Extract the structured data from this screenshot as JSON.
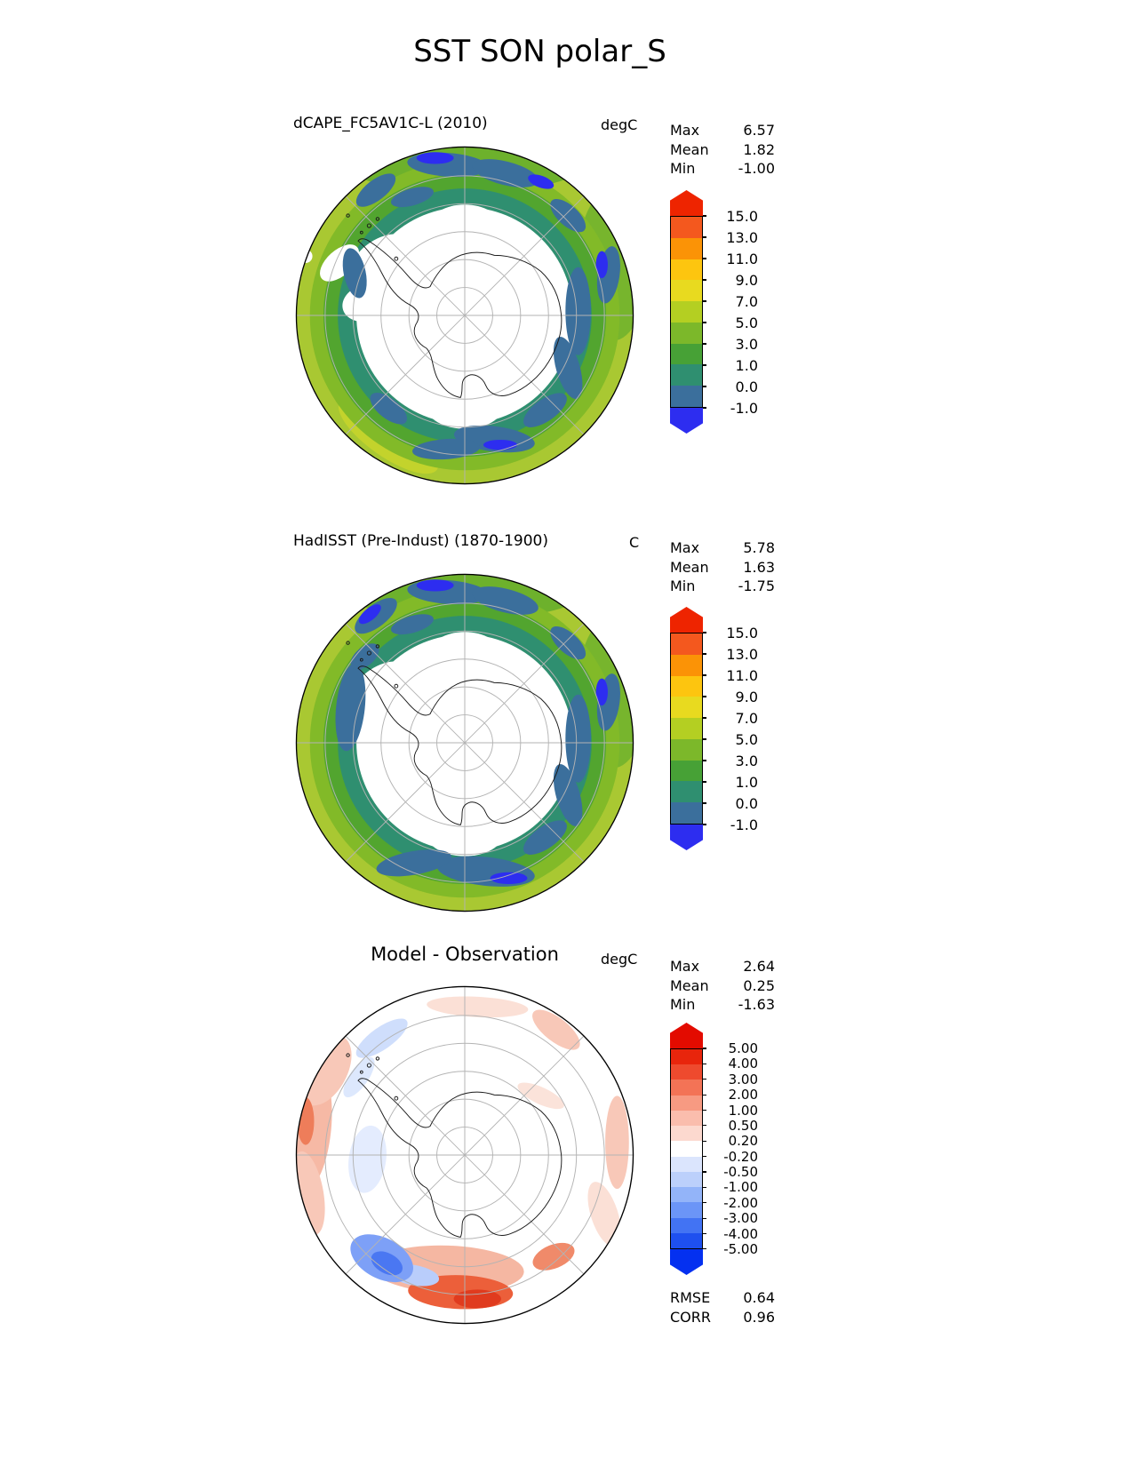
{
  "title": "SST SON polar_S",
  "panels": [
    {
      "title": "dCAPE_FC5AV1C-L (2010)",
      "units": "degC",
      "stats": [
        {
          "label": "Max",
          "value": "6.57"
        },
        {
          "label": "Mean",
          "value": "1.82"
        },
        {
          "label": "Min",
          "value": "-1.00"
        }
      ],
      "colorbar": {
        "ticks": [
          "15.0",
          "13.0",
          "11.0",
          "9.0",
          "7.0",
          "5.0",
          "3.0",
          "1.0",
          "0.0",
          "-1.0"
        ],
        "colors": [
          "#f4581e",
          "#fb9306",
          "#fdc50f",
          "#e8da1f",
          "#b4cf22",
          "#7cb82a",
          "#47a136",
          "#2f8f70",
          "#3b6f9c"
        ],
        "arrow_top": "#ee2400",
        "arrow_bottom": "#2d2df0"
      }
    },
    {
      "title": "HadISST (Pre-Indust) (1870-1900)",
      "units": "C",
      "stats": [
        {
          "label": "Max",
          "value": "5.78"
        },
        {
          "label": "Mean",
          "value": "1.63"
        },
        {
          "label": "Min",
          "value": "-1.75"
        }
      ],
      "colorbar": {
        "ticks": [
          "15.0",
          "13.0",
          "11.0",
          "9.0",
          "7.0",
          "5.0",
          "3.0",
          "1.0",
          "0.0",
          "-1.0"
        ],
        "colors": [
          "#f4581e",
          "#fb9306",
          "#fdc50f",
          "#e8da1f",
          "#b4cf22",
          "#7cb82a",
          "#47a136",
          "#2f8f70",
          "#3b6f9c"
        ],
        "arrow_top": "#ee2400",
        "arrow_bottom": "#2d2df0"
      }
    },
    {
      "title": "Model - Observation",
      "units": "degC",
      "stats": [
        {
          "label": "Max",
          "value": "2.64"
        },
        {
          "label": "Mean",
          "value": "0.25"
        },
        {
          "label": "Min",
          "value": "-1.63"
        }
      ],
      "colorbar": {
        "ticks": [
          "5.00",
          "4.00",
          "3.00",
          "2.00",
          "1.00",
          "0.50",
          "0.20",
          "-0.20",
          "-0.50",
          "-1.00",
          "-2.00",
          "-3.00",
          "-4.00",
          "-5.00"
        ],
        "colors": [
          "#e8250c",
          "#ee4a2e",
          "#f37356",
          "#f79a82",
          "#fabdad",
          "#fcd9cf",
          "#ffffff",
          "#dbe5fd",
          "#bcd0fb",
          "#93b4f9",
          "#6b95f7",
          "#4273f3",
          "#1e50ef"
        ],
        "arrow_top": "#e30b00",
        "arrow_bottom": "#0430f0"
      }
    }
  ],
  "footer_stats": [
    {
      "label": "RMSE",
      "value": "0.64"
    },
    {
      "label": "CORR",
      "value": "0.96"
    }
  ],
  "chart_data": [
    {
      "type": "heatmap",
      "panel": "model",
      "title": "dCAPE_FC5AV1C-L (2010)",
      "variable": "SST",
      "season": "SON",
      "region": "polar_S",
      "units": "degC",
      "stats": {
        "max": 6.57,
        "mean": 1.82,
        "min": -1.0
      },
      "contour_levels": [
        -1.0,
        0.0,
        1.0,
        3.0,
        5.0,
        7.0,
        9.0,
        11.0,
        13.0,
        15.0
      ],
      "legend_position": "right",
      "projection": "south polar map with graticule, Antarctica coastline"
    },
    {
      "type": "heatmap",
      "panel": "observation",
      "title": "HadISST (Pre-Indust) (1870-1900)",
      "variable": "SST",
      "season": "SON",
      "region": "polar_S",
      "units": "C",
      "stats": {
        "max": 5.78,
        "mean": 1.63,
        "min": -1.75
      },
      "contour_levels": [
        -1.0,
        0.0,
        1.0,
        3.0,
        5.0,
        7.0,
        9.0,
        11.0,
        13.0,
        15.0
      ],
      "legend_position": "right",
      "projection": "south polar map with graticule, Antarctica coastline"
    },
    {
      "type": "heatmap",
      "panel": "difference",
      "title": "Model - Observation",
      "variable": "SST",
      "season": "SON",
      "region": "polar_S",
      "units": "degC",
      "stats": {
        "max": 2.64,
        "mean": 0.25,
        "min": -1.63,
        "rmse": 0.64,
        "corr": 0.96
      },
      "contour_levels": [
        -5.0,
        -4.0,
        -3.0,
        -2.0,
        -1.0,
        -0.5,
        -0.2,
        0.2,
        0.5,
        1.0,
        2.0,
        3.0,
        4.0,
        5.0
      ],
      "legend_position": "right",
      "projection": "south polar map with graticule, Antarctica coastline"
    }
  ]
}
